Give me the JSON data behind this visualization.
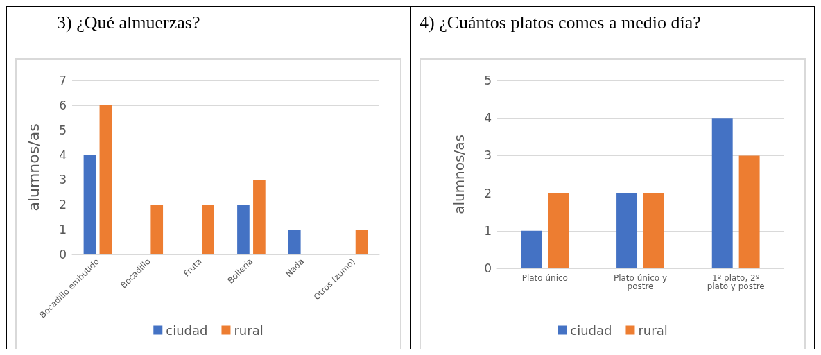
{
  "chart_data": [
    {
      "type": "bar",
      "title": "3)  ¿Qué almuerzas?",
      "ylabel": "alumnos/as",
      "categories": [
        "Bocadillo embutido",
        "Bocadillo",
        "Fruta",
        "Bollería",
        "Nada",
        "Otros (zumo)"
      ],
      "series": [
        {
          "name": "ciudad",
          "color": "#4472c4",
          "values": [
            4,
            0,
            0,
            2,
            1,
            0
          ]
        },
        {
          "name": "rural",
          "color": "#ed7d31",
          "values": [
            6,
            2,
            2,
            3,
            0,
            1
          ]
        }
      ],
      "ylim": [
        0,
        7
      ],
      "yticks": [
        0,
        1,
        2,
        3,
        4,
        5,
        6,
        7
      ],
      "grid": "y",
      "legend": "bottom"
    },
    {
      "type": "bar",
      "title": "4)  ¿Cuántos platos comes a medio día?",
      "ylabel": "alumnos/as",
      "categories": [
        "Plato único",
        "Plato único y postre",
        "1º plato, 2º plato y postre"
      ],
      "series": [
        {
          "name": "ciudad",
          "color": "#4472c4",
          "values": [
            1,
            2,
            4
          ]
        },
        {
          "name": "rural",
          "color": "#ed7d31",
          "values": [
            2,
            2,
            3
          ]
        }
      ],
      "ylim": [
        0,
        5
      ],
      "yticks": [
        0,
        1,
        2,
        3,
        4,
        5
      ],
      "grid": "y",
      "legend": "bottom"
    }
  ]
}
